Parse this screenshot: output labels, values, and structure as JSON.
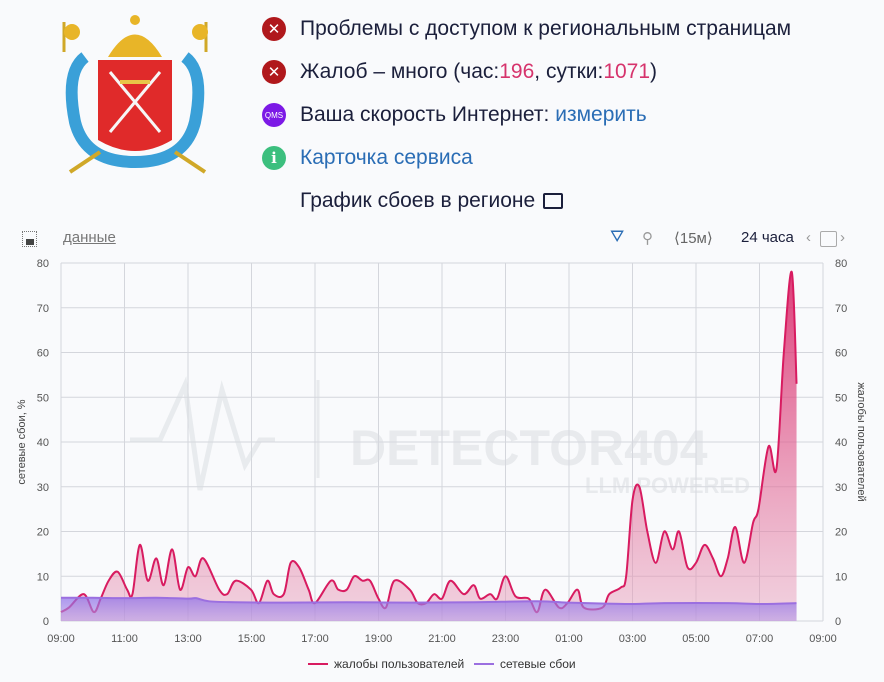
{
  "status": {
    "access_problem": "Проблемы с доступом к региональным страницам",
    "complaints_prefix": "Жалоб – много (час: ",
    "complaints_hour": "196",
    "complaints_mid": ", сутки: ",
    "complaints_day": "1071",
    "complaints_suffix": ")",
    "speed_label": "Ваша скорость Интернет: ",
    "speed_link": "измерить",
    "qms_badge": "QMS",
    "service_card": "Карточка сервиса",
    "chart_heading": "График сбоев в регионе"
  },
  "toolbar": {
    "data_link": "данные",
    "interval": "⟨15м⟩",
    "period": "24 часа"
  },
  "colors": {
    "complaints": "#d81b60",
    "network": "#9b6fe0",
    "error": "#b0181c",
    "link": "#2a6db5"
  },
  "watermark": {
    "title": "DETECTOR404",
    "subtitle": "LLM POWERED"
  },
  "chart_data": {
    "type": "area",
    "ylabel_left": "сетевые сбои, %",
    "ylabel_right": "жалобы пользователей",
    "ylim": [
      0,
      80
    ],
    "yticks": [
      "0",
      "10",
      "20",
      "30",
      "40",
      "50",
      "60",
      "70",
      "80"
    ],
    "xticks": [
      "09:00",
      "11:00",
      "13:00",
      "15:00",
      "17:00",
      "19:00",
      "21:00",
      "23:00",
      "01:00",
      "03:00",
      "05:00",
      "07:00",
      "09:00"
    ],
    "grid": true,
    "legend": "bottom",
    "series": [
      {
        "name": "жалобы пользователей",
        "axis": "right",
        "points": [
          [
            "09:00",
            2
          ],
          [
            "09:15",
            3
          ],
          [
            "09:43",
            6
          ],
          [
            "10:02",
            2
          ],
          [
            "10:15",
            5
          ],
          [
            "10:30",
            9
          ],
          [
            "10:47",
            11
          ],
          [
            "11:05",
            7
          ],
          [
            "11:15",
            6
          ],
          [
            "11:29",
            17
          ],
          [
            "11:44",
            9
          ],
          [
            "12:00",
            14
          ],
          [
            "12:14",
            8
          ],
          [
            "12:30",
            16
          ],
          [
            "12:45",
            7
          ],
          [
            "13:00",
            12
          ],
          [
            "13:14",
            10
          ],
          [
            "13:29",
            14
          ],
          [
            "13:59",
            7
          ],
          [
            "14:14",
            6
          ],
          [
            "14:30",
            9
          ],
          [
            "14:59",
            7
          ],
          [
            "15:14",
            4
          ],
          [
            "15:30",
            9
          ],
          [
            "15:42",
            6
          ],
          [
            "16:01",
            6
          ],
          [
            "16:14",
            13
          ],
          [
            "16:30",
            12
          ],
          [
            "16:48",
            7
          ],
          [
            "17:00",
            4
          ],
          [
            "17:30",
            9
          ],
          [
            "17:44",
            7
          ],
          [
            "18:00",
            7
          ],
          [
            "18:14",
            10
          ],
          [
            "18:30",
            9
          ],
          [
            "18:44",
            9
          ],
          [
            "19:00",
            5
          ],
          [
            "19:14",
            3
          ],
          [
            "19:30",
            9
          ],
          [
            "19:59",
            7
          ],
          [
            "20:14",
            4
          ],
          [
            "20:30",
            4
          ],
          [
            "20:45",
            6
          ],
          [
            "21:00",
            5
          ],
          [
            "21:16",
            9
          ],
          [
            "21:41",
            6
          ],
          [
            "22:00",
            8
          ],
          [
            "22:12",
            5
          ],
          [
            "22:31",
            6
          ],
          [
            "22:44",
            5
          ],
          [
            "23:00",
            10
          ],
          [
            "23:19",
            5.5
          ],
          [
            "23:44",
            5
          ],
          [
            "00:00",
            2
          ],
          [
            "00:15",
            7
          ],
          [
            "00:41",
            3
          ],
          [
            "00:57",
            4
          ],
          [
            "01:16",
            7
          ],
          [
            "01:28",
            3
          ],
          [
            "02:03",
            3
          ],
          [
            "02:16",
            6
          ],
          [
            "02:38",
            7.5
          ],
          [
            "02:48",
            10
          ],
          [
            "03:00",
            27
          ],
          [
            "03:13",
            30
          ],
          [
            "03:28",
            20
          ],
          [
            "03:44",
            13
          ],
          [
            "04:00",
            20
          ],
          [
            "04:16",
            16
          ],
          [
            "04:28",
            20
          ],
          [
            "04:44",
            12
          ],
          [
            "05:00",
            13
          ],
          [
            "05:16",
            17
          ],
          [
            "05:32",
            14
          ],
          [
            "05:47",
            10
          ],
          [
            "06:00",
            14
          ],
          [
            "06:14",
            21
          ],
          [
            "06:31",
            13
          ],
          [
            "06:48",
            22
          ],
          [
            "06:58",
            25
          ],
          [
            "07:17",
            39
          ],
          [
            "07:32",
            34
          ],
          [
            "07:46",
            60
          ],
          [
            "08:01",
            78
          ],
          [
            "08:10",
            53
          ]
        ]
      },
      {
        "name": "сетевые сбои",
        "axis": "left",
        "points": [
          [
            "09:00",
            5.2
          ],
          [
            "10:00",
            5.2
          ],
          [
            "11:00",
            5.1
          ],
          [
            "12:00",
            5.2
          ],
          [
            "13:00",
            5.0
          ],
          [
            "13:15",
            5.1
          ],
          [
            "13:40",
            4.4
          ],
          [
            "14:30",
            4.2
          ],
          [
            "16:00",
            4.1
          ],
          [
            "18:00",
            4.2
          ],
          [
            "20:00",
            4.1
          ],
          [
            "22:00",
            4.2
          ],
          [
            "00:00",
            4.4
          ],
          [
            "01:00",
            4.1
          ],
          [
            "02:00",
            3.9
          ],
          [
            "03:00",
            3.8
          ],
          [
            "04:00",
            4.0
          ],
          [
            "06:00",
            4.0
          ],
          [
            "07:00",
            3.8
          ],
          [
            "08:10",
            4.0
          ]
        ]
      }
    ]
  }
}
